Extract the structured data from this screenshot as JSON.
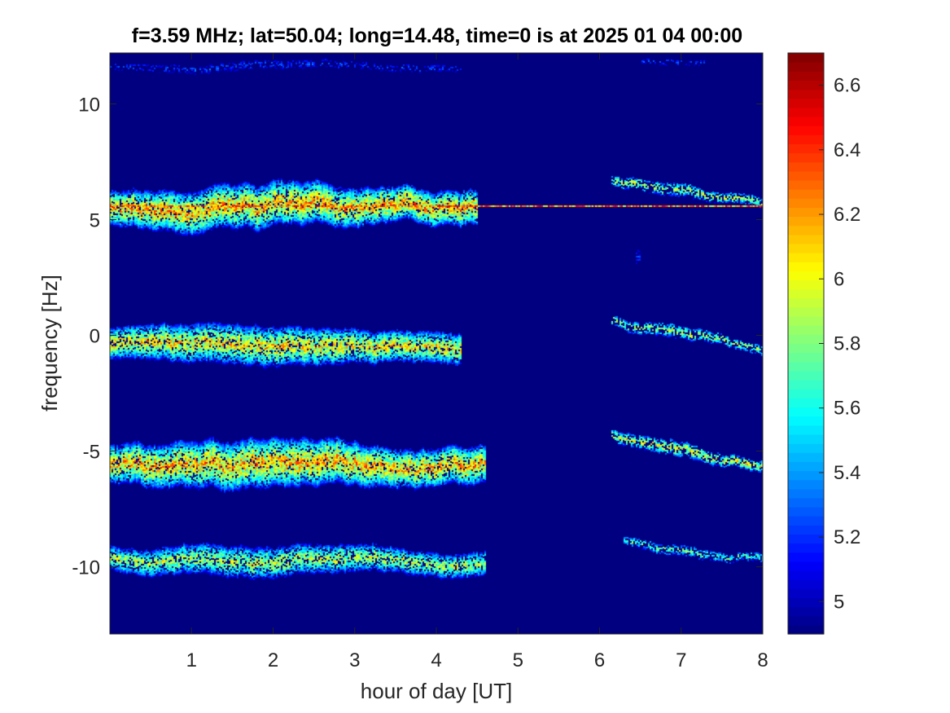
{
  "chart_data": {
    "type": "heatmap",
    "title": "f=3.59 MHz;  lat=50.04; long=14.48, time=0 is at 2025 01 04 00:00",
    "xlabel": "hour of day [UT]",
    "ylabel": "frequency [Hz]",
    "xlim": [
      0,
      8
    ],
    "ylim": [
      -12.9,
      12.2
    ],
    "x_ticks": [
      1,
      2,
      3,
      4,
      5,
      6,
      7,
      8
    ],
    "x_tick_labels": [
      "1",
      "2",
      "3",
      "4",
      "5",
      "6",
      "7",
      "8"
    ],
    "y_ticks": [
      -10,
      -5,
      0,
      5,
      10
    ],
    "y_tick_labels": [
      "-10",
      "-5",
      "0",
      "5",
      "10"
    ],
    "colorbar": {
      "colormap": "jet",
      "clim": [
        4.9,
        6.7
      ],
      "ticks": [
        5,
        5.2,
        5.4,
        5.6,
        5.8,
        6,
        6.2,
        6.4,
        6.6
      ],
      "tick_labels": [
        "5",
        "5.2",
        "5.4",
        "5.6",
        "5.8",
        "6",
        "6.2",
        "6.4",
        "6.6"
      ]
    },
    "background_value": 4.9,
    "traces": [
      {
        "t": [
          0,
          4.3
        ],
        "freq": [
          11.7,
          11.7
        ],
        "peak": 5.4,
        "spread": 0.2,
        "drift": 0.2,
        "density": 0.35
      },
      {
        "t": [
          6.5,
          7.3
        ],
        "freq": [
          11.9,
          11.9
        ],
        "peak": 5.4,
        "spread": 0.15,
        "drift": 0.1,
        "density": 0.3
      },
      {
        "t": [
          0,
          8
        ],
        "freq": [
          5.6,
          5.6
        ],
        "peak": 6.6,
        "spread": 0.05,
        "drift": 0,
        "density": 1.0
      },
      {
        "t": [
          0,
          4.5
        ],
        "freq": [
          5.6,
          5.6
        ],
        "peak": 6.5,
        "spread": 1.0,
        "drift": 0.5,
        "density": 0.85
      },
      {
        "t": [
          6.15,
          8
        ],
        "freq": [
          6.7,
          5.7
        ],
        "peak": 6.2,
        "spread": 0.3,
        "drift": 0.3,
        "density": 0.55
      },
      {
        "t": [
          0,
          4.3
        ],
        "freq": [
          -0.3,
          -0.5
        ],
        "peak": 6.4,
        "spread": 0.9,
        "drift": 0.4,
        "density": 0.8
      },
      {
        "t": [
          6.15,
          8
        ],
        "freq": [
          0.7,
          -0.5
        ],
        "peak": 6.2,
        "spread": 0.3,
        "drift": 0.3,
        "density": 0.55
      },
      {
        "t": [
          0,
          4.6
        ],
        "freq": [
          -5.5,
          -5.6
        ],
        "peak": 6.5,
        "spread": 1.1,
        "drift": 0.5,
        "density": 0.85
      },
      {
        "t": [
          6.15,
          8
        ],
        "freq": [
          -4.2,
          -5.6
        ],
        "peak": 6.3,
        "spread": 0.35,
        "drift": 0.35,
        "density": 0.6
      },
      {
        "t": [
          0,
          4.6
        ],
        "freq": [
          -9.6,
          -9.7
        ],
        "peak": 6.2,
        "spread": 0.7,
        "drift": 0.4,
        "density": 0.75
      },
      {
        "t": [
          6.3,
          8
        ],
        "freq": [
          -8.8,
          -9.6
        ],
        "peak": 6.0,
        "spread": 0.25,
        "drift": 0.3,
        "density": 0.55
      },
      {
        "t": [
          6.45,
          6.5
        ],
        "freq": [
          3.4,
          3.4
        ],
        "peak": 5.4,
        "spread": 0.4,
        "drift": 0,
        "density": 0.5
      }
    ]
  }
}
